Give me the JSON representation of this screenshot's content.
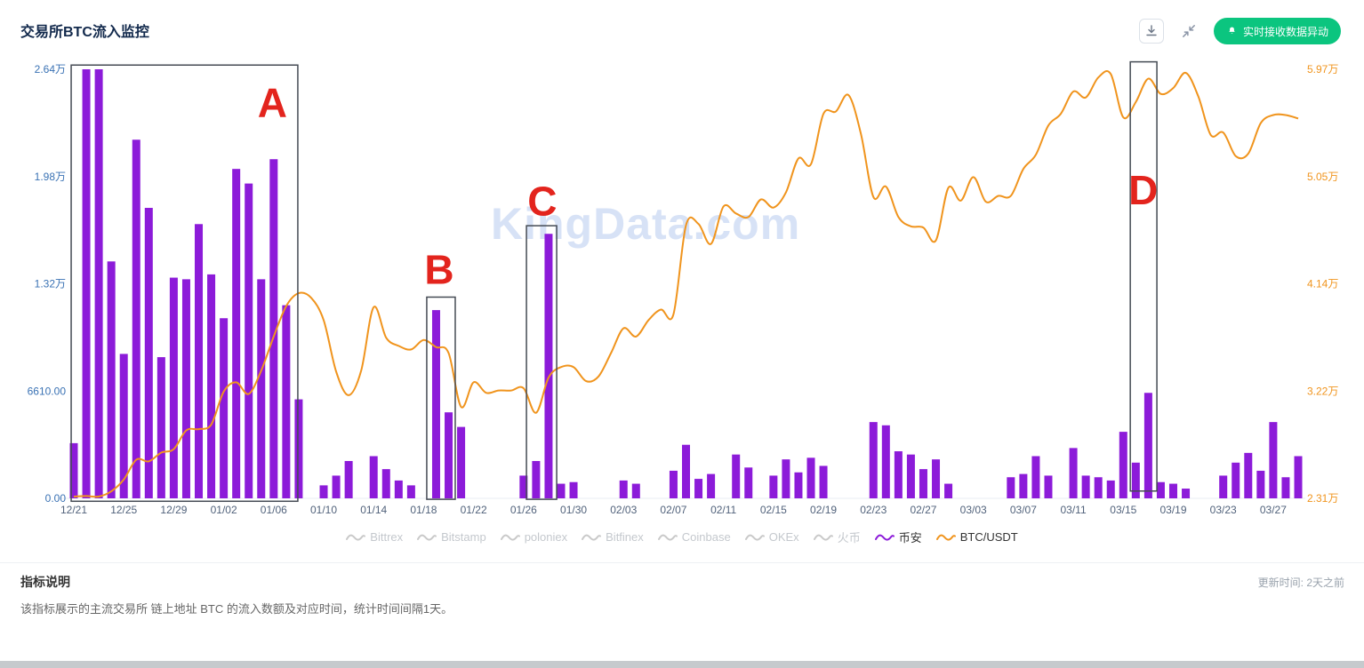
{
  "header": {
    "title": "交易所BTC流入监控",
    "alert_button": "实时接收数据异动"
  },
  "watermark": "KingData.com",
  "legend": [
    {
      "label": "Bittrex",
      "active": false,
      "color": "#c9c9c9"
    },
    {
      "label": "Bitstamp",
      "active": false,
      "color": "#c9c9c9"
    },
    {
      "label": "poloniex",
      "active": false,
      "color": "#c9c9c9"
    },
    {
      "label": "Bitfinex",
      "active": false,
      "color": "#c9c9c9"
    },
    {
      "label": "Coinbase",
      "active": false,
      "color": "#c9c9c9"
    },
    {
      "label": "OKEx",
      "active": false,
      "color": "#c9c9c9"
    },
    {
      "label": "火币",
      "active": false,
      "color": "#c9c9c9"
    },
    {
      "label": "币安",
      "active": true,
      "color": "#8c1bd9"
    },
    {
      "label": "BTC/USDT",
      "active": true,
      "color": "#f0941d"
    }
  ],
  "footer": {
    "section_title": "指标说明",
    "description": "该指标展示的主流交易所 链上地址 BTC 的流入数额及对应时间，统计时间间隔1天。",
    "updated": "更新时间: 2天之前"
  },
  "chart_data": {
    "type": "bar+line",
    "title": "交易所BTC流入监控",
    "x_tick_interval": 4,
    "x": [
      "12/21",
      "12/22",
      "12/23",
      "12/24",
      "12/25",
      "12/26",
      "12/27",
      "12/28",
      "12/29",
      "12/30",
      "12/31",
      "01/01",
      "01/02",
      "01/03",
      "01/04",
      "01/05",
      "01/06",
      "01/07",
      "01/08",
      "01/09",
      "01/10",
      "01/11",
      "01/12",
      "01/13",
      "01/14",
      "01/15",
      "01/16",
      "01/17",
      "01/18",
      "01/19",
      "01/20",
      "01/21",
      "01/22",
      "01/23",
      "01/24",
      "01/25",
      "01/26",
      "01/27",
      "01/28",
      "01/29",
      "01/30",
      "01/31",
      "02/01",
      "02/02",
      "02/03",
      "02/04",
      "02/05",
      "02/06",
      "02/07",
      "02/08",
      "02/09",
      "02/10",
      "02/11",
      "02/12",
      "02/13",
      "02/14",
      "02/15",
      "02/16",
      "02/17",
      "02/18",
      "02/19",
      "02/20",
      "02/21",
      "02/22",
      "02/23",
      "02/24",
      "02/25",
      "02/26",
      "02/27",
      "02/28",
      "03/01",
      "03/02",
      "03/03",
      "03/04",
      "03/05",
      "03/06",
      "03/07",
      "03/08",
      "03/09",
      "03/10",
      "03/11",
      "03/12",
      "03/13",
      "03/14",
      "03/15",
      "03/16",
      "03/17",
      "03/18",
      "03/19",
      "03/20",
      "03/21",
      "03/22",
      "03/23",
      "03/24",
      "03/25",
      "03/26",
      "03/27",
      "03/28",
      "03/29"
    ],
    "series": [
      {
        "name": "币安",
        "type": "bar",
        "axis": "left",
        "color": "#8c1bd9",
        "values": [
          3400,
          26440,
          26440,
          14600,
          8900,
          22100,
          17900,
          8700,
          13600,
          13500,
          16900,
          13800,
          11100,
          20300,
          19400,
          13500,
          20900,
          11900,
          6100,
          0,
          800,
          1400,
          2300,
          0,
          2600,
          1800,
          1100,
          800,
          0,
          11600,
          5300,
          4400,
          0,
          0,
          0,
          0,
          1400,
          2300,
          16300,
          900,
          1000,
          0,
          0,
          0,
          1100,
          900,
          0,
          0,
          1700,
          3300,
          1200,
          1500,
          0,
          2700,
          1900,
          0,
          1400,
          2400,
          1600,
          2500,
          2000,
          0,
          0,
          0,
          4700,
          4500,
          2900,
          2700,
          1800,
          2400,
          900,
          0,
          0,
          0,
          0,
          1300,
          1500,
          2600,
          1400,
          0,
          3100,
          1400,
          1300,
          1100,
          4100,
          2200,
          6500,
          1000,
          900,
          600,
          0,
          0,
          1400,
          2200,
          2800,
          1700,
          4700,
          1300,
          2600
        ]
      },
      {
        "name": "BTC/USDT",
        "type": "line",
        "axis": "right",
        "color": "#f0941d",
        "values": [
          23250,
          23300,
          23250,
          23700,
          24700,
          26400,
          26250,
          27000,
          27300,
          28900,
          29000,
          29400,
          32200,
          33000,
          32000,
          34000,
          36900,
          39500,
          40600,
          40200,
          38300,
          33900,
          31900,
          34000,
          39400,
          36800,
          36100,
          35800,
          36600,
          36000,
          35500,
          30900,
          33000,
          32100,
          32300,
          32300,
          32500,
          30400,
          33400,
          34300,
          34300,
          33100,
          33500,
          35500,
          37600,
          36900,
          38300,
          39200,
          38800,
          46400,
          46500,
          44800,
          48000,
          47400,
          47100,
          48600,
          47900,
          49200,
          52100,
          51600,
          55900,
          56100,
          57500,
          54200,
          48800,
          49700,
          47100,
          46300,
          46200,
          45100,
          49600,
          48500,
          50500,
          48400,
          48900,
          48900,
          51200,
          52400,
          54900,
          55900,
          57800,
          57300,
          59000,
          59300,
          55600,
          56900,
          58900,
          57600,
          58100,
          59400,
          57400,
          54100,
          54300,
          52300,
          52500,
          55100,
          55800,
          55800,
          55500
        ]
      }
    ],
    "left_axis": {
      "min": 0,
      "max": 26440,
      "color": "#3a72b4",
      "ticks": [
        {
          "value": 0,
          "label": "0.00"
        },
        {
          "value": 6610,
          "label": "6610.00"
        },
        {
          "value": 13220,
          "label": "1.32万"
        },
        {
          "value": 19830,
          "label": "1.98万"
        },
        {
          "value": 26440,
          "label": "2.64万"
        }
      ]
    },
    "right_axis": {
      "min": 23100,
      "max": 59700,
      "color": "#f0941d",
      "ticks": [
        {
          "value": 23100,
          "label": "2.31万"
        },
        {
          "value": 32250,
          "label": "3.22万"
        },
        {
          "value": 41400,
          "label": "4.14万"
        },
        {
          "value": 50550,
          "label": "5.05万"
        },
        {
          "value": 59700,
          "label": "5.97万"
        }
      ]
    },
    "annotations": [
      {
        "letter": "A",
        "letter_x_idx": 15.9,
        "letter_y_value": 24400,
        "box": {
          "x0_idx": -0.21,
          "x1_idx": 17.93,
          "y0_value": -180,
          "y1_value": 26700
        }
      },
      {
        "letter": "B",
        "letter_x_idx": 29.25,
        "letter_y_value": 14100,
        "box": {
          "x0_idx": 28.25,
          "x1_idx": 30.53,
          "y0_value": -60,
          "y1_value": 12400
        }
      },
      {
        "letter": "C",
        "letter_x_idx": 37.5,
        "letter_y_value": 18300,
        "box": {
          "x0_idx": 36.23,
          "x1_idx": 38.65,
          "y0_value": -60,
          "y1_value": 16800
        }
      },
      {
        "letter": "D",
        "letter_x_idx": 85.6,
        "letter_y_value": 19000,
        "box": {
          "x0_idx": 84.56,
          "x1_idx": 86.69,
          "y0_value": 450,
          "y1_value": 26900
        }
      }
    ]
  }
}
